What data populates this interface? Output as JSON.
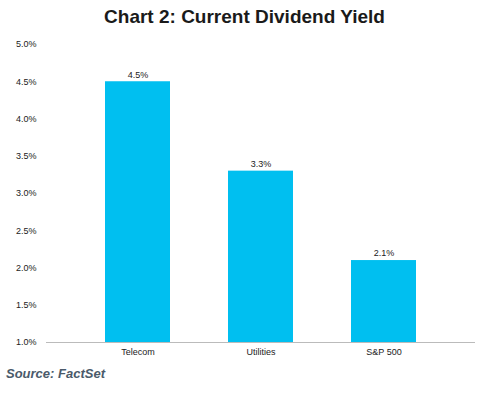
{
  "chart_data": {
    "type": "bar",
    "title": "Chart 2: Current Dividend Yield",
    "categories": [
      "Telecom",
      "Utilities",
      "S&P 500"
    ],
    "values": [
      4.5,
      3.3,
      2.1
    ],
    "value_labels": [
      "4.5%",
      "3.3%",
      "2.1%"
    ],
    "data_labels": true,
    "color": "#00bff0",
    "ylim": [
      1.0,
      5.0
    ],
    "yticks": [
      {
        "value": 1.0,
        "label": "1.0%"
      },
      {
        "value": 1.5,
        "label": "1.5%"
      },
      {
        "value": 2.0,
        "label": "2.0%"
      },
      {
        "value": 2.5,
        "label": "2.5%"
      },
      {
        "value": 3.0,
        "label": "3.0%"
      },
      {
        "value": 3.5,
        "label": "3.5%"
      },
      {
        "value": 4.0,
        "label": "4.0%"
      },
      {
        "value": 4.5,
        "label": "4.5%"
      },
      {
        "value": 5.0,
        "label": "5.0%"
      }
    ],
    "grid": false,
    "caption": "Source: FactSet"
  }
}
